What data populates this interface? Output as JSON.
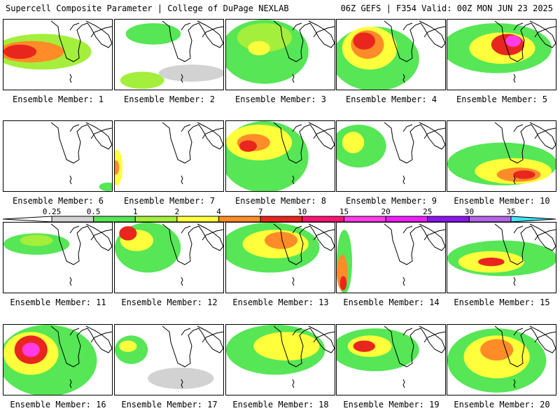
{
  "header": {
    "left": "Supercell Composite Parameter | College of DuPage NEXLAB",
    "right": "06Z GEFS | F354 Valid: 00Z MON JUN 23 2025"
  },
  "colorbar": {
    "labels": [
      "0.25",
      "0.5",
      "1",
      "2",
      "4",
      "7",
      "10",
      "15",
      "20",
      "25",
      "30",
      "35"
    ],
    "colors": [
      "#d2d2d2",
      "#56e656",
      "#a4ee3c",
      "#ffff3c",
      "#ff8c28",
      "#e8261e",
      "#ff1478",
      "#ff3ce6",
      "#f01eff",
      "#8c14f0",
      "#b464e6",
      "#3ce6ff"
    ]
  },
  "panels": [
    {
      "label": "Ensemble Member: 1",
      "blobs": [
        [
          0.35,
          0.45,
          0.45,
          0.25,
          2
        ],
        [
          0.25,
          0.45,
          0.3,
          0.15,
          4
        ],
        [
          0.15,
          0.45,
          0.15,
          0.1,
          5
        ]
      ]
    },
    {
      "label": "Ensemble Member: 2",
      "blobs": [
        [
          0.35,
          0.2,
          0.25,
          0.15,
          1
        ],
        [
          0.25,
          0.85,
          0.2,
          0.12,
          2
        ],
        [
          0.7,
          0.75,
          0.3,
          0.12,
          0
        ]
      ]
    },
    {
      "label": "Ensemble Member: 3",
      "blobs": [
        [
          0.35,
          0.45,
          0.4,
          0.45,
          1
        ],
        [
          0.35,
          0.25,
          0.25,
          0.2,
          2
        ],
        [
          0.3,
          0.4,
          0.1,
          0.1,
          3
        ]
      ]
    },
    {
      "label": "Ensemble Member: 4",
      "blobs": [
        [
          0.35,
          0.55,
          0.4,
          0.45,
          1
        ],
        [
          0.3,
          0.4,
          0.25,
          0.3,
          3
        ],
        [
          0.28,
          0.35,
          0.15,
          0.2,
          4
        ],
        [
          0.25,
          0.3,
          0.1,
          0.12,
          5
        ]
      ]
    },
    {
      "label": "Ensemble Member: 5",
      "blobs": [
        [
          0.45,
          0.4,
          0.5,
          0.35,
          1
        ],
        [
          0.5,
          0.4,
          0.3,
          0.22,
          3
        ],
        [
          0.55,
          0.35,
          0.15,
          0.15,
          5
        ],
        [
          0.6,
          0.3,
          0.07,
          0.08,
          7
        ]
      ]
    },
    {
      "label": "Ensemble Member: 6",
      "blobs": [
        [
          0.95,
          0.92,
          0.08,
          0.06,
          1
        ]
      ]
    },
    {
      "label": "Ensemble Member: 7",
      "blobs": [
        [
          0.02,
          0.65,
          0.05,
          0.25,
          3
        ],
        [
          0.01,
          0.65,
          0.03,
          0.1,
          4
        ]
      ]
    },
    {
      "label": "Ensemble Member: 8",
      "blobs": [
        [
          0.35,
          0.5,
          0.4,
          0.5,
          1
        ],
        [
          0.3,
          0.3,
          0.3,
          0.25,
          3
        ],
        [
          0.25,
          0.3,
          0.15,
          0.12,
          4
        ],
        [
          0.2,
          0.35,
          0.08,
          0.08,
          5
        ]
      ]
    },
    {
      "label": "Ensemble Member: 9",
      "blobs": [
        [
          0.2,
          0.35,
          0.25,
          0.3,
          1
        ],
        [
          0.15,
          0.3,
          0.1,
          0.15,
          3
        ]
      ]
    },
    {
      "label": "Ensemble Member: 10",
      "blobs": [
        [
          0.5,
          0.6,
          0.5,
          0.3,
          1
        ],
        [
          0.6,
          0.7,
          0.35,
          0.18,
          3
        ],
        [
          0.65,
          0.75,
          0.2,
          0.1,
          4
        ],
        [
          0.7,
          0.75,
          0.1,
          0.06,
          5
        ]
      ]
    },
    {
      "label": "Ensemble Member: 11",
      "blobs": [
        [
          0.3,
          0.3,
          0.3,
          0.15,
          1
        ],
        [
          0.3,
          0.25,
          0.15,
          0.08,
          2
        ]
      ]
    },
    {
      "label": "Ensemble Member: 12",
      "blobs": [
        [
          0.3,
          0.35,
          0.3,
          0.35,
          1
        ],
        [
          0.2,
          0.25,
          0.15,
          0.15,
          3
        ],
        [
          0.12,
          0.15,
          0.08,
          0.1,
          5
        ]
      ]
    },
    {
      "label": "Ensemble Member: 13",
      "blobs": [
        [
          0.4,
          0.35,
          0.45,
          0.35,
          1
        ],
        [
          0.45,
          0.3,
          0.3,
          0.2,
          3
        ],
        [
          0.5,
          0.25,
          0.15,
          0.12,
          4
        ]
      ]
    },
    {
      "label": "Ensemble Member: 14",
      "blobs": [
        [
          0.07,
          0.55,
          0.07,
          0.45,
          1
        ],
        [
          0.05,
          0.7,
          0.05,
          0.25,
          4
        ],
        [
          0.06,
          0.85,
          0.03,
          0.1,
          5
        ]
      ]
    },
    {
      "label": "Ensemble Member: 15",
      "blobs": [
        [
          0.5,
          0.5,
          0.5,
          0.25,
          1
        ],
        [
          0.4,
          0.55,
          0.3,
          0.15,
          3
        ],
        [
          0.4,
          0.55,
          0.12,
          0.06,
          5
        ]
      ]
    },
    {
      "label": "Ensemble Member: 16",
      "blobs": [
        [
          0.4,
          0.5,
          0.45,
          0.5,
          1
        ],
        [
          0.25,
          0.4,
          0.25,
          0.3,
          3
        ],
        [
          0.25,
          0.35,
          0.15,
          0.2,
          5
        ],
        [
          0.25,
          0.35,
          0.08,
          0.1,
          7
        ]
      ]
    },
    {
      "label": "Ensemble Member: 17",
      "blobs": [
        [
          0.15,
          0.35,
          0.15,
          0.2,
          1
        ],
        [
          0.12,
          0.3,
          0.08,
          0.08,
          3
        ],
        [
          0.6,
          0.75,
          0.3,
          0.15,
          0
        ]
      ]
    },
    {
      "label": "Ensemble Member: 18",
      "blobs": [
        [
          0.45,
          0.35,
          0.45,
          0.35,
          1
        ],
        [
          0.55,
          0.3,
          0.3,
          0.2,
          3
        ]
      ]
    },
    {
      "label": "Ensemble Member: 19",
      "blobs": [
        [
          0.35,
          0.35,
          0.4,
          0.3,
          1
        ],
        [
          0.3,
          0.3,
          0.2,
          0.15,
          3
        ],
        [
          0.25,
          0.3,
          0.1,
          0.08,
          5
        ]
      ]
    },
    {
      "label": "Ensemble Member: 20",
      "blobs": [
        [
          0.45,
          0.5,
          0.45,
          0.45,
          1
        ],
        [
          0.45,
          0.45,
          0.3,
          0.3,
          3
        ],
        [
          0.45,
          0.35,
          0.15,
          0.15,
          4
        ]
      ]
    }
  ]
}
